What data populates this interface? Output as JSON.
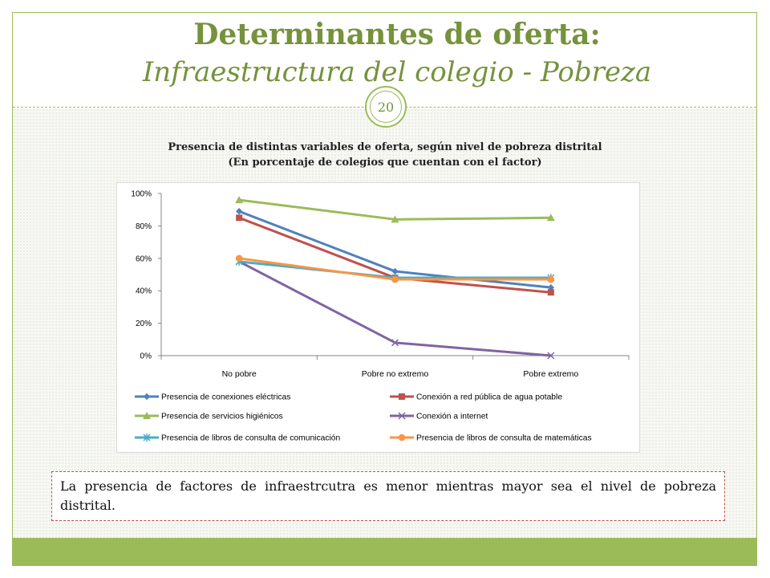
{
  "slide": {
    "title": "Determinantes de oferta:",
    "subtitle": "Infraestructura del colegio - Pobreza",
    "page_number": "20",
    "note": "La presencia de factores de infraestrcutra es menor mientras mayor sea el nivel de pobreza distrital.",
    "accent_color": "#9bbb59",
    "title_color": "#76923c"
  },
  "chart_title": {
    "line1": "Presencia de distintas variables de oferta, según nivel de pobreza distrital",
    "line2": "(En porcentaje de colegios que cuentan con el factor)"
  },
  "chart_data": {
    "type": "line",
    "categories": [
      "No pobre",
      "Pobre no extremo",
      "Pobre extremo"
    ],
    "ylim": [
      0,
      100
    ],
    "yticks": [
      0,
      20,
      40,
      60,
      80,
      100
    ],
    "ytick_labels": [
      "0%",
      "20%",
      "40%",
      "60%",
      "80%",
      "100%"
    ],
    "grid": false,
    "legend_position": "bottom",
    "series": [
      {
        "name": "Presencia de conexiones eléctricas",
        "values": [
          89,
          52,
          42
        ],
        "color": "#4f81bd",
        "marker": "diamond"
      },
      {
        "name": "Conexión a red pública de agua potable",
        "values": [
          85,
          48,
          39
        ],
        "color": "#c0504d",
        "marker": "square"
      },
      {
        "name": "Presencia de servicios higiénicos",
        "values": [
          96,
          84,
          85
        ],
        "color": "#9bbb59",
        "marker": "triangle"
      },
      {
        "name": "Conexión a internet",
        "values": [
          58,
          8,
          0
        ],
        "color": "#8064a2",
        "marker": "x"
      },
      {
        "name": "Presencia de libros de consulta de comunicación",
        "values": [
          58,
          48,
          48
        ],
        "color": "#4bacc6",
        "marker": "star"
      },
      {
        "name": "Presencia de libros de consulta de matemáticas",
        "values": [
          60,
          47,
          47
        ],
        "color": "#f79646",
        "marker": "circle"
      }
    ]
  }
}
